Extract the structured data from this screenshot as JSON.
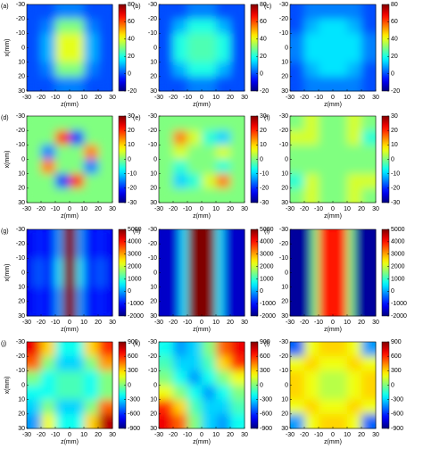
{
  "chart_data": [
    {
      "type": "heatmap",
      "title": "(a)",
      "xlabel": "z(mm)",
      "ylabel": "x(mm)",
      "colormap": "jet",
      "xlim": [
        -30,
        30
      ],
      "xticks": [
        -30,
        -20,
        -10,
        0,
        10,
        20,
        30
      ],
      "ylim": [
        -30,
        30
      ],
      "y_inverted": true,
      "yticks": [
        -30,
        -20,
        -10,
        0,
        10,
        20,
        30
      ],
      "clim": [
        -20,
        80
      ],
      "cticks": [
        -20,
        0,
        20,
        40,
        60,
        80
      ],
      "z": [
        [
          0,
          0,
          5,
          5,
          0,
          0
        ],
        [
          0,
          5,
          30,
          30,
          5,
          0
        ],
        [
          0,
          10,
          40,
          40,
          10,
          0
        ],
        [
          0,
          10,
          40,
          40,
          10,
          0
        ],
        [
          0,
          5,
          30,
          30,
          5,
          0
        ],
        [
          0,
          0,
          5,
          5,
          0,
          0
        ]
      ]
    },
    {
      "type": "heatmap",
      "title": "(b)",
      "xlabel": "z(mm)",
      "colormap": "jet",
      "xlim": [
        -30,
        30
      ],
      "xticks": [
        -30,
        -20,
        -10,
        0,
        10,
        20,
        30
      ],
      "ylim": [
        -30,
        30
      ],
      "y_inverted": true,
      "yticks": [
        -30,
        -20,
        -10,
        0,
        10,
        20,
        30
      ],
      "clim": [
        -20,
        80
      ],
      "cticks": [
        -20,
        0,
        20,
        40,
        60,
        80
      ],
      "z": [
        [
          0,
          0,
          5,
          5,
          0,
          0
        ],
        [
          0,
          10,
          20,
          20,
          10,
          0
        ],
        [
          0,
          20,
          25,
          25,
          20,
          0
        ],
        [
          0,
          20,
          25,
          25,
          20,
          0
        ],
        [
          0,
          10,
          20,
          20,
          10,
          0
        ],
        [
          0,
          0,
          5,
          5,
          0,
          0
        ]
      ]
    },
    {
      "type": "heatmap",
      "title": "(c)",
      "xlabel": "z(mm)",
      "colormap": "jet",
      "xlim": [
        -30,
        30
      ],
      "xticks": [
        -30,
        -20,
        -10,
        0,
        10,
        20,
        30
      ],
      "ylim": [
        -30,
        30
      ],
      "y_inverted": true,
      "yticks": [
        -30,
        -20,
        -10,
        0,
        10,
        20,
        30
      ],
      "clim": [
        -20,
        80
      ],
      "cticks": [
        -20,
        0,
        20,
        40,
        60,
        80
      ],
      "z": [
        [
          0,
          5,
          5,
          5,
          5,
          0
        ],
        [
          0,
          10,
          15,
          15,
          10,
          0
        ],
        [
          5,
          15,
          15,
          15,
          15,
          5
        ],
        [
          5,
          15,
          15,
          15,
          15,
          5
        ],
        [
          0,
          10,
          15,
          15,
          10,
          0
        ],
        [
          0,
          5,
          5,
          5,
          5,
          0
        ]
      ]
    },
    {
      "type": "heatmap",
      "title": "(d)",
      "xlabel": "z(mm)",
      "ylabel": "x(mm)",
      "colormap": "jet",
      "xlim": [
        -30,
        30
      ],
      "xticks": [
        -30,
        -20,
        -10,
        0,
        10,
        20,
        30
      ],
      "ylim": [
        -30,
        30
      ],
      "y_inverted": true,
      "yticks": [
        -30,
        -20,
        -10,
        0,
        10,
        20,
        30
      ],
      "clim": [
        -30,
        30
      ],
      "cticks": [
        -30,
        -20,
        -10,
        0,
        10,
        20,
        30
      ],
      "z": [
        [
          0,
          0,
          0,
          0,
          0,
          0
        ],
        [
          0,
          0,
          20,
          -20,
          0,
          0
        ],
        [
          0,
          -15,
          0,
          0,
          15,
          0
        ],
        [
          0,
          15,
          0,
          0,
          -15,
          0
        ],
        [
          0,
          0,
          -20,
          20,
          0,
          0
        ],
        [
          0,
          0,
          0,
          0,
          0,
          0
        ]
      ]
    },
    {
      "type": "heatmap",
      "title": "(e)",
      "xlabel": "z(mm)",
      "colormap": "jet",
      "xlim": [
        -30,
        30
      ],
      "xticks": [
        -30,
        -20,
        -10,
        0,
        10,
        20,
        30
      ],
      "ylim": [
        -30,
        30
      ],
      "y_inverted": true,
      "yticks": [
        -30,
        -20,
        -10,
        0,
        10,
        20,
        30
      ],
      "clim": [
        -30,
        30
      ],
      "cticks": [
        -30,
        -20,
        -10,
        0,
        10,
        20,
        30
      ],
      "z": [
        [
          0,
          0,
          0,
          0,
          0,
          0
        ],
        [
          0,
          15,
          5,
          -5,
          -10,
          0
        ],
        [
          0,
          5,
          0,
          0,
          5,
          0
        ],
        [
          0,
          -5,
          0,
          0,
          -5,
          0
        ],
        [
          0,
          -10,
          -5,
          5,
          15,
          0
        ],
        [
          0,
          0,
          0,
          0,
          0,
          0
        ]
      ]
    },
    {
      "type": "heatmap",
      "title": "(f)",
      "xlabel": "z(mm)",
      "colormap": "jet",
      "xlim": [
        -30,
        30
      ],
      "xticks": [
        -30,
        -20,
        -10,
        0,
        10,
        20,
        30
      ],
      "ylim": [
        -30,
        30
      ],
      "y_inverted": true,
      "yticks": [
        -30,
        -20,
        -10,
        0,
        10,
        20,
        30
      ],
      "clim": [
        -30,
        30
      ],
      "cticks": [
        -30,
        -20,
        -10,
        0,
        10,
        20,
        30
      ],
      "z": [
        [
          0,
          5,
          0,
          0,
          5,
          0
        ],
        [
          5,
          5,
          0,
          0,
          5,
          -5
        ],
        [
          0,
          0,
          0,
          0,
          0,
          0
        ],
        [
          0,
          0,
          0,
          0,
          0,
          0
        ],
        [
          -5,
          5,
          0,
          0,
          5,
          5
        ],
        [
          0,
          5,
          0,
          0,
          5,
          0
        ]
      ]
    },
    {
      "type": "heatmap",
      "title": "(g)",
      "xlabel": "z(mm)",
      "ylabel": "x(mm)",
      "colormap": "jet",
      "xlim": [
        -30,
        30
      ],
      "xticks": [
        -30,
        -20,
        -10,
        0,
        10,
        20,
        30
      ],
      "ylim": [
        -30,
        30
      ],
      "y_inverted": true,
      "yticks": [
        -30,
        -20,
        -10,
        0,
        10,
        20,
        30
      ],
      "clim": [
        -2000,
        5000
      ],
      "cticks": [
        -2000,
        -1000,
        0,
        1000,
        2000,
        3000,
        4000,
        5000
      ],
      "z": [
        [
          -1200,
          -900,
          -1000,
          -1200,
          0,
          5000,
          5000,
          0,
          -1200,
          -1000,
          -900,
          -1200
        ],
        [
          -1200,
          -500,
          -700,
          -1200,
          500,
          5000,
          5000,
          500,
          -1200,
          -700,
          -500,
          -1200
        ],
        [
          -1200,
          -900,
          -1000,
          -1200,
          0,
          5000,
          5000,
          0,
          -1200,
          -1000,
          -900,
          -1200
        ]
      ]
    },
    {
      "type": "heatmap",
      "title": "(h)",
      "xlabel": "z(mm)",
      "colormap": "jet",
      "xlim": [
        -30,
        30
      ],
      "xticks": [
        -30,
        -20,
        -10,
        0,
        10,
        20,
        30
      ],
      "ylim": [
        -30,
        30
      ],
      "y_inverted": true,
      "yticks": [
        -30,
        -20,
        -10,
        0,
        10,
        20,
        30
      ],
      "clim": [
        -2000,
        5000
      ],
      "cticks": [
        -2000,
        -1000,
        0,
        1000,
        2000,
        3000,
        4000,
        5000
      ],
      "z": [
        [
          -1500,
          -1500,
          -1400,
          500,
          5000,
          5000,
          5000,
          5000,
          500,
          -1400,
          -1500,
          -1500
        ],
        [
          -1500,
          -1500,
          -1400,
          500,
          5000,
          5000,
          5000,
          5000,
          500,
          -1400,
          -1500,
          -1500
        ],
        [
          -1500,
          -1500,
          -1400,
          500,
          5000,
          5000,
          5000,
          5000,
          500,
          -1400,
          -1500,
          -1500
        ]
      ]
    },
    {
      "type": "heatmap",
      "title": "(i)",
      "xlabel": "z(mm)",
      "colormap": "jet",
      "xlim": [
        -30,
        30
      ],
      "xticks": [
        -30,
        -20,
        -10,
        0,
        10,
        20,
        30
      ],
      "ylim": [
        -30,
        30
      ],
      "y_inverted": true,
      "yticks": [
        -30,
        -20,
        -10,
        0,
        10,
        20,
        30
      ],
      "clim": [
        -2000,
        5000
      ],
      "cticks": [
        -2000,
        -1000,
        0,
        1000,
        2000,
        3000,
        4000,
        5000
      ],
      "z": [
        [
          -1800,
          -1800,
          -1800,
          1500,
          4000,
          4000,
          4000,
          4000,
          1500,
          -1800,
          -1800,
          -1800
        ],
        [
          -1800,
          -1800,
          -1800,
          1500,
          4000,
          4000,
          4000,
          4000,
          1500,
          -1800,
          -1800,
          -1800
        ],
        [
          -1800,
          -1800,
          -1800,
          1500,
          4000,
          4000,
          4000,
          4000,
          1500,
          -1800,
          -1800,
          -1800
        ]
      ]
    },
    {
      "type": "heatmap",
      "title": "(j)",
      "xlabel": "z(mm)",
      "ylabel": "x(mm)",
      "colormap": "jet",
      "xlim": [
        -30,
        30
      ],
      "xticks": [
        -30,
        -20,
        -10,
        0,
        10,
        20,
        30
      ],
      "ylim": [
        -30,
        30
      ],
      "y_inverted": true,
      "yticks": [
        -30,
        -20,
        -10,
        0,
        10,
        20,
        30
      ],
      "clim": [
        -900,
        900
      ],
      "cticks": [
        -900,
        -600,
        -300,
        0,
        300,
        600,
        900
      ],
      "z": [
        [
          700,
          300,
          -200,
          -200,
          300,
          600
        ],
        [
          500,
          0,
          -300,
          -300,
          0,
          400
        ],
        [
          0,
          -200,
          -100,
          -100,
          -200,
          0
        ],
        [
          -200,
          -200,
          -100,
          -100,
          -200,
          0
        ],
        [
          -300,
          0,
          -300,
          -300,
          0,
          500
        ],
        [
          -400,
          200,
          -200,
          -200,
          300,
          800
        ]
      ]
    },
    {
      "type": "heatmap",
      "title": "(k)",
      "xlabel": "z(mm)",
      "colormap": "jet",
      "xlim": [
        -30,
        30
      ],
      "xticks": [
        -30,
        -20,
        -10,
        0,
        10,
        20,
        30
      ],
      "ylim": [
        -30,
        30
      ],
      "y_inverted": true,
      "yticks": [
        -30,
        -20,
        -10,
        0,
        10,
        20,
        30
      ],
      "clim": [
        -900,
        900
      ],
      "cticks": [
        -900,
        -600,
        -300,
        0,
        300,
        600,
        900
      ],
      "z": [
        [
          -200,
          -400,
          -300,
          0,
          500,
          700
        ],
        [
          -100,
          -300,
          -300,
          -100,
          300,
          600
        ],
        [
          0,
          -200,
          -400,
          -200,
          0,
          200
        ],
        [
          200,
          0,
          -200,
          -400,
          -200,
          0
        ],
        [
          600,
          300,
          -100,
          -300,
          -300,
          -100
        ],
        [
          700,
          500,
          0,
          -300,
          -400,
          -200
        ]
      ]
    },
    {
      "type": "heatmap",
      "title": "(l)",
      "xlabel": "z(mm)",
      "colormap": "jet",
      "xlim": [
        -30,
        30
      ],
      "xticks": [
        -30,
        -20,
        -10,
        0,
        10,
        20,
        30
      ],
      "ylim": [
        -30,
        30
      ],
      "y_inverted": true,
      "yticks": [
        -30,
        -20,
        -10,
        0,
        10,
        20,
        30
      ],
      "clim": [
        -900,
        900
      ],
      "cticks": [
        -900,
        -600,
        -300,
        0,
        300,
        600,
        900
      ],
      "z": [
        [
          -500,
          200,
          300,
          300,
          200,
          -400
        ],
        [
          200,
          300,
          200,
          200,
          300,
          200
        ],
        [
          300,
          200,
          100,
          100,
          200,
          300
        ],
        [
          300,
          200,
          100,
          100,
          200,
          300
        ],
        [
          200,
          300,
          200,
          200,
          300,
          200
        ],
        [
          -400,
          200,
          300,
          300,
          200,
          -500
        ]
      ]
    }
  ]
}
